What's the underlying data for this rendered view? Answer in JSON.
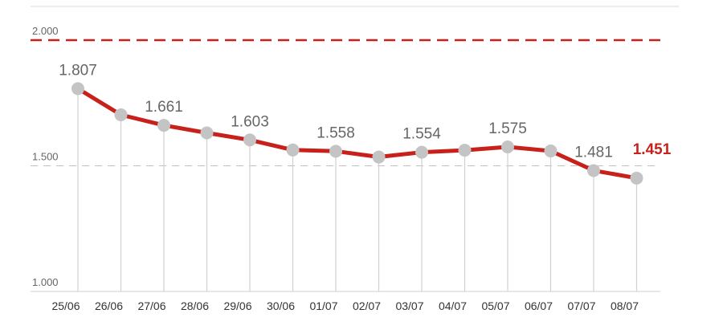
{
  "chart_data": {
    "type": "line",
    "categories": [
      "25/06",
      "26/06",
      "27/06",
      "28/06",
      "29/06",
      "30/06",
      "01/07",
      "02/07",
      "03/07",
      "04/07",
      "05/07",
      "06/07",
      "07/07",
      "08/07"
    ],
    "series": [
      {
        "values": [
          1807,
          1703,
          1661,
          1631,
          1603,
          1563,
          1558,
          1535,
          1554,
          1562,
          1575,
          1559,
          1481,
          1451
        ]
      }
    ],
    "labels": [
      {
        "index": 0,
        "text": "1.807"
      },
      {
        "index": 2,
        "text": "1.661"
      },
      {
        "index": 4,
        "text": "1.603"
      },
      {
        "index": 6,
        "text": "1.558"
      },
      {
        "index": 8,
        "text": "1.554"
      },
      {
        "index": 10,
        "text": "1.575"
      },
      {
        "index": 12,
        "text": "1.481"
      },
      {
        "index": 13,
        "text": "1.451"
      }
    ],
    "yticks": [
      {
        "value": 2000,
        "label": "2.000"
      },
      {
        "value": 1500,
        "label": "1.500"
      },
      {
        "value": 1000,
        "label": "1.000"
      }
    ],
    "ylim": [
      1000,
      2000
    ],
    "colors": {
      "line": "#c8201b",
      "marker": "#c4c4c4",
      "dropline": "#d0d0d0",
      "ref_dash": "#c0c0c0"
    }
  }
}
